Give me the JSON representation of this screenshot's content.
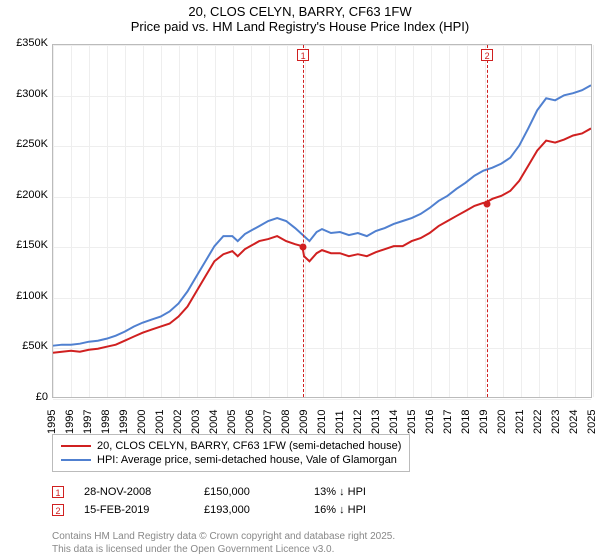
{
  "title": {
    "line1": "20, CLOS CELYN, BARRY, CF63 1FW",
    "line2": "Price paid vs. HM Land Registry's House Price Index (HPI)"
  },
  "chart": {
    "type": "line",
    "background_color": "#ffffff",
    "grid_color": "#eeeeee",
    "border_color": "#bbbbbb",
    "yaxis": {
      "min": 0,
      "max": 350000,
      "step": 50000,
      "labels": [
        "£0",
        "£50K",
        "£100K",
        "£150K",
        "£200K",
        "£250K",
        "£300K",
        "£350K"
      ],
      "fontsize": 11
    },
    "xaxis": {
      "min": 1995,
      "max": 2025,
      "step": 1,
      "labels": [
        "1995",
        "1996",
        "1997",
        "1998",
        "1999",
        "2000",
        "2001",
        "2002",
        "2003",
        "2004",
        "2005",
        "2006",
        "2007",
        "2008",
        "2009",
        "2010",
        "2011",
        "2012",
        "2013",
        "2014",
        "2015",
        "2016",
        "2017",
        "2018",
        "2019",
        "2020",
        "2021",
        "2022",
        "2023",
        "2024",
        "2025"
      ],
      "fontsize": 11
    },
    "series": [
      {
        "id": "price_paid",
        "label": "20, CLOS CELYN, BARRY, CF63 1FW (semi-detached house)",
        "color": "#d02020",
        "line_width": 2,
        "data": [
          [
            1995,
            44000
          ],
          [
            1995.5,
            45000
          ],
          [
            1996,
            46000
          ],
          [
            1996.5,
            45000
          ],
          [
            1997,
            47000
          ],
          [
            1997.5,
            48000
          ],
          [
            1998,
            50000
          ],
          [
            1998.5,
            52000
          ],
          [
            1999,
            56000
          ],
          [
            1999.5,
            60000
          ],
          [
            2000,
            64000
          ],
          [
            2000.5,
            67000
          ],
          [
            2001,
            70000
          ],
          [
            2001.5,
            73000
          ],
          [
            2002,
            80000
          ],
          [
            2002.5,
            90000
          ],
          [
            2003,
            105000
          ],
          [
            2003.5,
            120000
          ],
          [
            2004,
            135000
          ],
          [
            2004.5,
            142000
          ],
          [
            2005,
            145000
          ],
          [
            2005.3,
            140000
          ],
          [
            2005.7,
            147000
          ],
          [
            2006,
            150000
          ],
          [
            2006.5,
            155000
          ],
          [
            2007,
            157000
          ],
          [
            2007.5,
            160000
          ],
          [
            2008,
            155000
          ],
          [
            2008.5,
            152000
          ],
          [
            2008.9,
            150000
          ],
          [
            2009,
            140000
          ],
          [
            2009.3,
            135000
          ],
          [
            2009.7,
            143000
          ],
          [
            2010,
            146000
          ],
          [
            2010.5,
            143000
          ],
          [
            2011,
            143000
          ],
          [
            2011.5,
            140000
          ],
          [
            2012,
            142000
          ],
          [
            2012.5,
            140000
          ],
          [
            2013,
            144000
          ],
          [
            2013.5,
            147000
          ],
          [
            2014,
            150000
          ],
          [
            2014.5,
            150000
          ],
          [
            2015,
            155000
          ],
          [
            2015.5,
            158000
          ],
          [
            2016,
            163000
          ],
          [
            2016.5,
            170000
          ],
          [
            2017,
            175000
          ],
          [
            2017.5,
            180000
          ],
          [
            2018,
            185000
          ],
          [
            2018.5,
            190000
          ],
          [
            2019,
            193000
          ],
          [
            2019.1,
            193000
          ],
          [
            2019.5,
            197000
          ],
          [
            2020,
            200000
          ],
          [
            2020.5,
            205000
          ],
          [
            2021,
            215000
          ],
          [
            2021.5,
            230000
          ],
          [
            2022,
            245000
          ],
          [
            2022.5,
            255000
          ],
          [
            2023,
            253000
          ],
          [
            2023.5,
            256000
          ],
          [
            2024,
            260000
          ],
          [
            2024.5,
            262000
          ],
          [
            2025,
            267000
          ]
        ]
      },
      {
        "id": "hpi",
        "label": "HPI: Average price, semi-detached house, Vale of Glamorgan",
        "color": "#5080d0",
        "line_width": 2,
        "data": [
          [
            1995,
            51000
          ],
          [
            1995.5,
            52000
          ],
          [
            1996,
            52000
          ],
          [
            1996.5,
            53000
          ],
          [
            1997,
            55000
          ],
          [
            1997.5,
            56000
          ],
          [
            1998,
            58000
          ],
          [
            1998.5,
            61000
          ],
          [
            1999,
            65000
          ],
          [
            1999.5,
            70000
          ],
          [
            2000,
            74000
          ],
          [
            2000.5,
            77000
          ],
          [
            2001,
            80000
          ],
          [
            2001.5,
            85000
          ],
          [
            2002,
            93000
          ],
          [
            2002.5,
            105000
          ],
          [
            2003,
            120000
          ],
          [
            2003.5,
            135000
          ],
          [
            2004,
            150000
          ],
          [
            2004.5,
            160000
          ],
          [
            2005,
            160000
          ],
          [
            2005.3,
            155000
          ],
          [
            2005.7,
            162000
          ],
          [
            2006,
            165000
          ],
          [
            2006.5,
            170000
          ],
          [
            2007,
            175000
          ],
          [
            2007.5,
            178000
          ],
          [
            2008,
            175000
          ],
          [
            2008.5,
            168000
          ],
          [
            2009,
            160000
          ],
          [
            2009.3,
            155000
          ],
          [
            2009.7,
            164000
          ],
          [
            2010,
            167000
          ],
          [
            2010.5,
            163000
          ],
          [
            2011,
            164000
          ],
          [
            2011.5,
            161000
          ],
          [
            2012,
            163000
          ],
          [
            2012.5,
            160000
          ],
          [
            2013,
            165000
          ],
          [
            2013.5,
            168000
          ],
          [
            2014,
            172000
          ],
          [
            2014.5,
            175000
          ],
          [
            2015,
            178000
          ],
          [
            2015.5,
            182000
          ],
          [
            2016,
            188000
          ],
          [
            2016.5,
            195000
          ],
          [
            2017,
            200000
          ],
          [
            2017.5,
            207000
          ],
          [
            2018,
            213000
          ],
          [
            2018.5,
            220000
          ],
          [
            2019,
            225000
          ],
          [
            2019.5,
            228000
          ],
          [
            2020,
            232000
          ],
          [
            2020.5,
            238000
          ],
          [
            2021,
            250000
          ],
          [
            2021.5,
            267000
          ],
          [
            2022,
            285000
          ],
          [
            2022.5,
            297000
          ],
          [
            2023,
            295000
          ],
          [
            2023.5,
            300000
          ],
          [
            2024,
            302000
          ],
          [
            2024.5,
            305000
          ],
          [
            2025,
            310000
          ]
        ]
      }
    ],
    "markers": [
      {
        "n": "1",
        "date_year": 2008.9,
        "price": 150000
      },
      {
        "n": "2",
        "date_year": 2019.12,
        "price": 193000
      }
    ]
  },
  "legend": {
    "fontsize": 11
  },
  "sale_table": {
    "arrow": "↓",
    "rows": [
      {
        "n": "1",
        "date": "28-NOV-2008",
        "price": "£150,000",
        "delta": "13% ↓ HPI"
      },
      {
        "n": "2",
        "date": "15-FEB-2019",
        "price": "£193,000",
        "delta": "16% ↓ HPI"
      }
    ]
  },
  "footer": {
    "line1": "Contains HM Land Registry data © Crown copyright and database right 2025.",
    "line2": "This data is licensed under the Open Government Licence v3.0."
  }
}
